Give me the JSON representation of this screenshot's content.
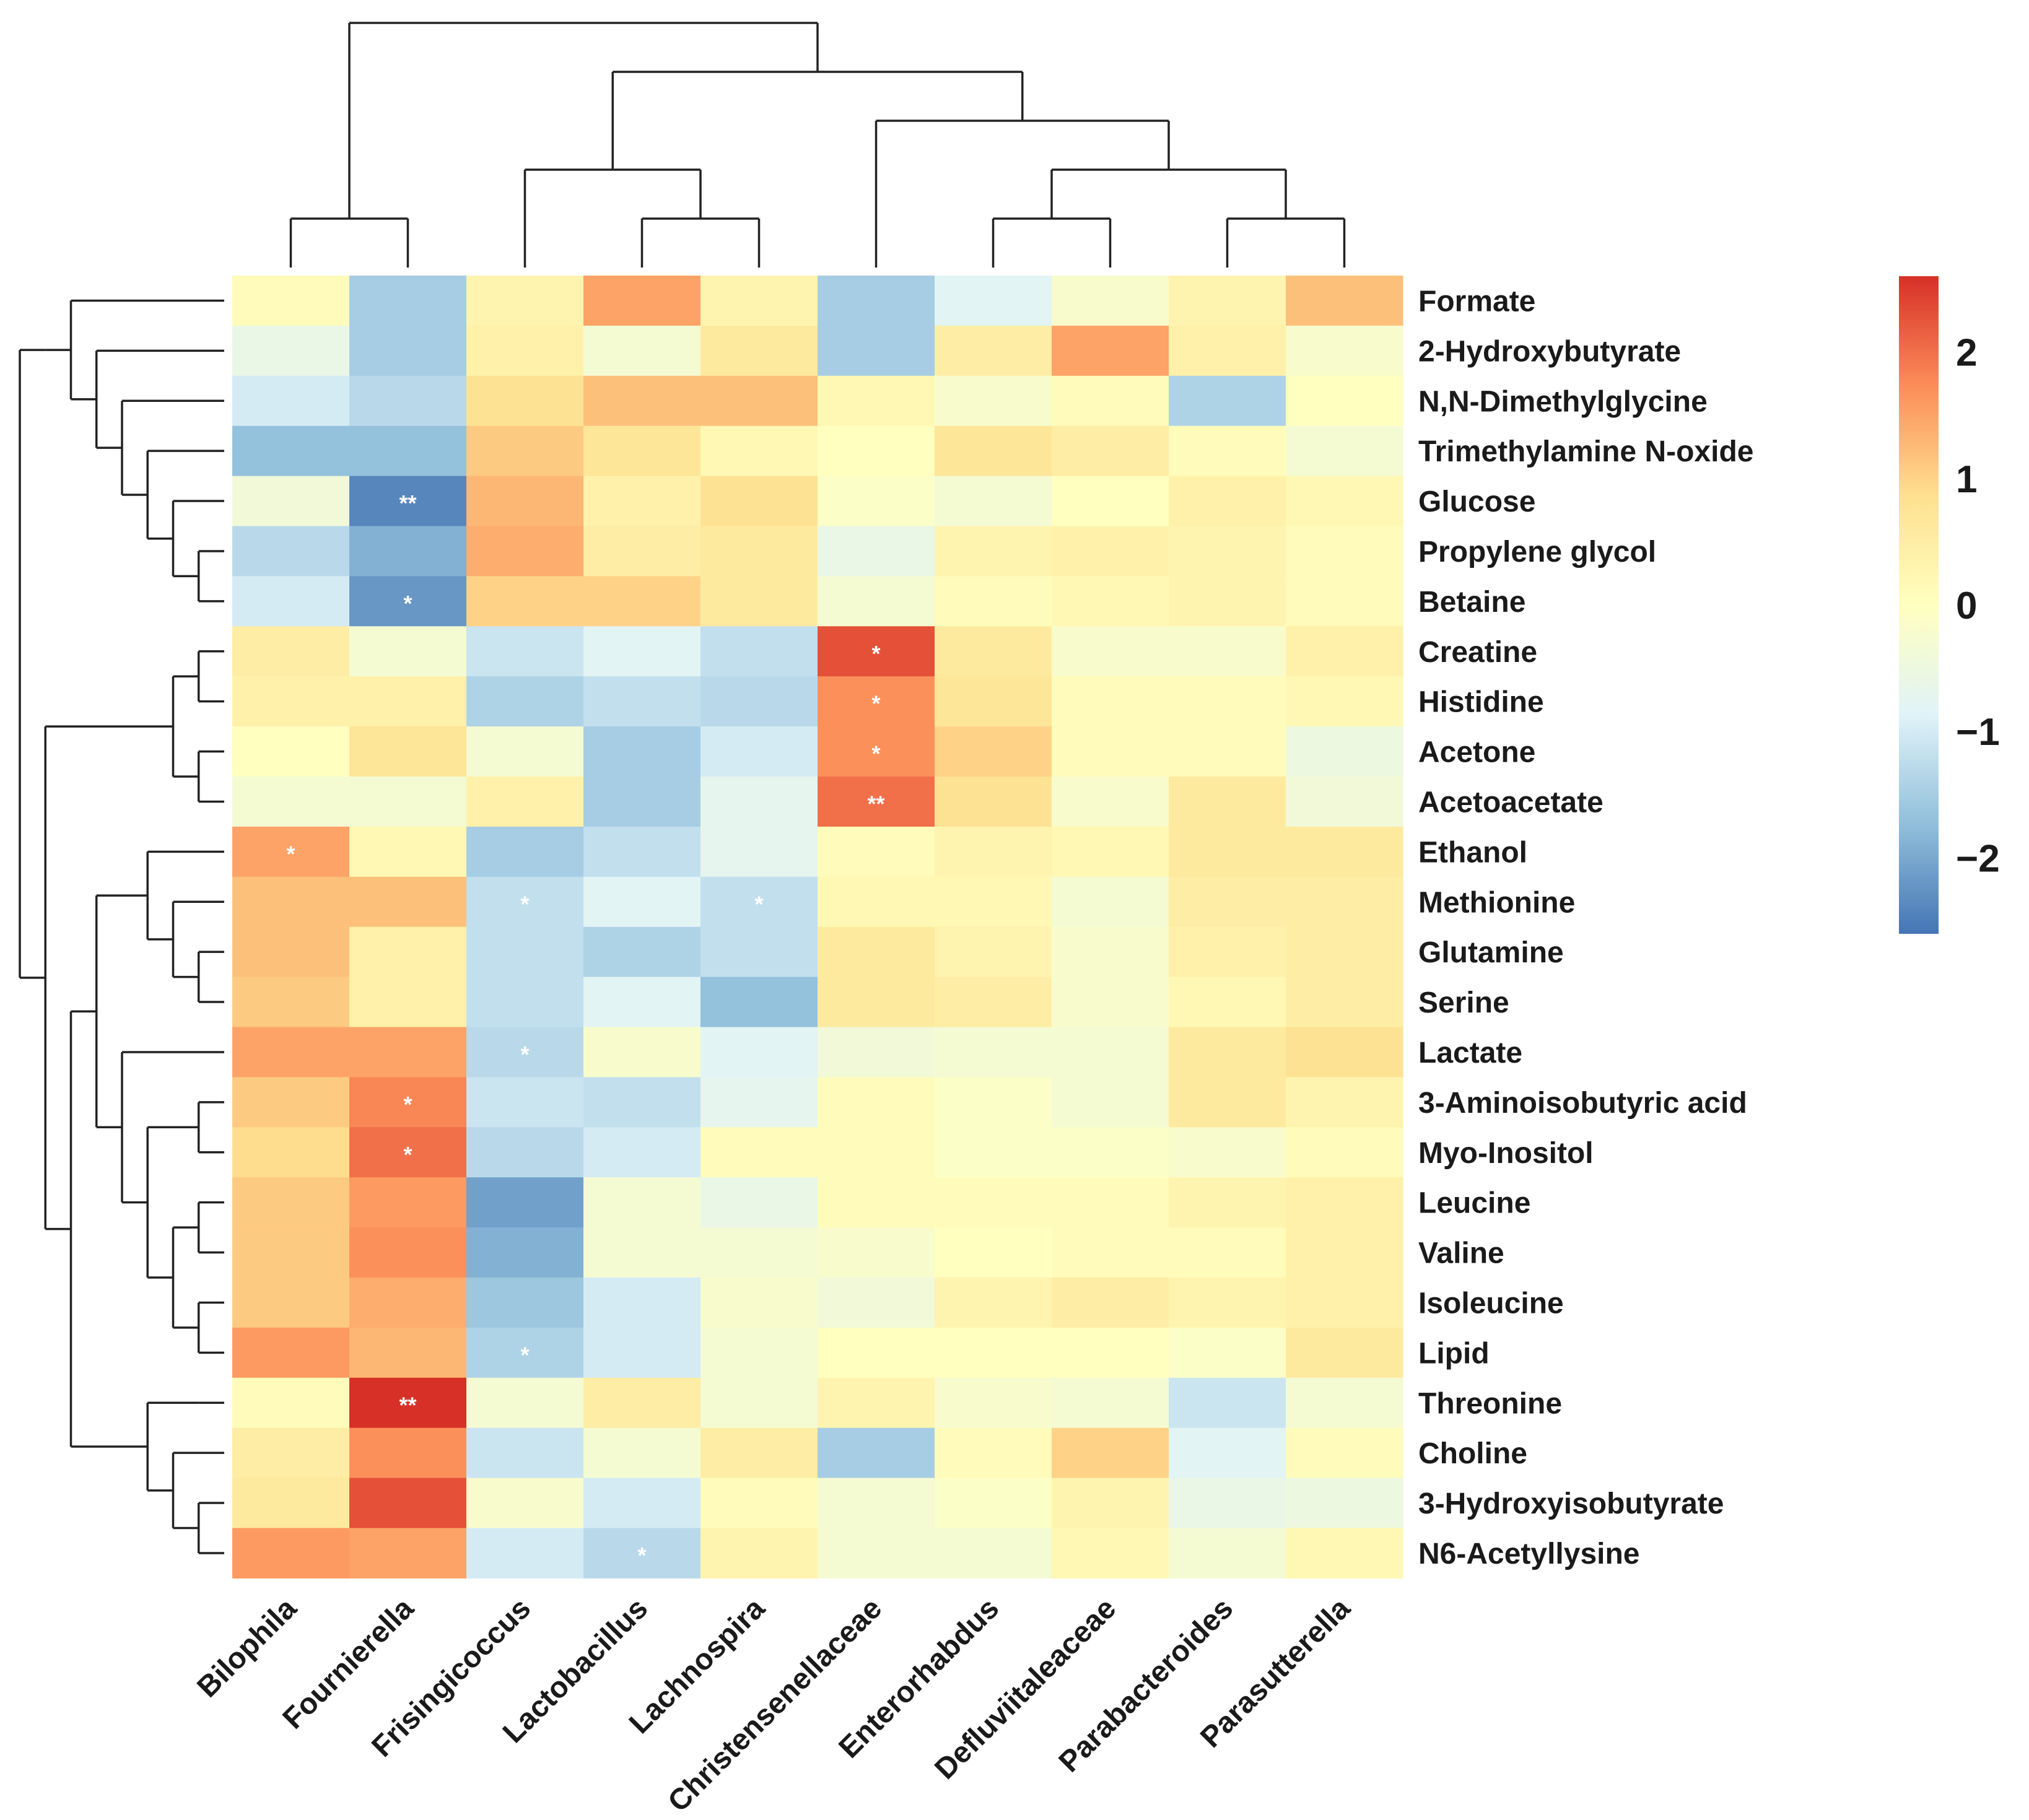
{
  "chart_data": {
    "type": "heatmap",
    "title": "",
    "rows": [
      "Formate",
      "2-Hydroxybutyrate",
      "N,N-Dimethylglycine",
      "Trimethylamine N-oxide",
      "Glucose",
      "Propylene glycol",
      "Betaine",
      "Creatine",
      "Histidine",
      "Acetone",
      "Acetoacetate",
      "Ethanol",
      "Methionine",
      "Glutamine",
      "Serine",
      "Lactate",
      "3-Aminoisobutyric acid",
      "Myo-Inositol",
      "Leucine",
      "Valine",
      "Isoleucine",
      "Lipid",
      "Threonine",
      "Choline",
      "3-Hydroxyisobutyrate",
      "N6-Acetyllysine"
    ],
    "columns": [
      "Bilophila",
      "Fournierella",
      "Frisingicoccus",
      "Lactobacillus",
      "Lachnospira",
      "Christensenellaceae",
      "Enterorhabdus",
      "Defluviitaleaceae",
      "Parabacteroides",
      "Parasutterella"
    ],
    "values": [
      [
        0.1,
        -1.5,
        0.3,
        1.5,
        0.3,
        -1.5,
        -0.8,
        -0.2,
        0.3,
        1.2
      ],
      [
        -0.6,
        -1.5,
        0.4,
        -0.3,
        0.6,
        -1.5,
        0.5,
        1.5,
        0.4,
        -0.2
      ],
      [
        -1.0,
        -1.3,
        0.8,
        1.2,
        1.2,
        0.2,
        -0.2,
        0.1,
        -1.4,
        0
      ],
      [
        -1.7,
        -1.7,
        1.1,
        0.7,
        0.2,
        0,
        0.7,
        0.5,
        0.1,
        -0.3
      ],
      [
        -0.4,
        -2.4,
        1.3,
        0.4,
        0.8,
        -0.1,
        -0.3,
        0,
        0.4,
        0.2
      ],
      [
        -1.3,
        -1.9,
        1.4,
        0.5,
        0.6,
        -0.6,
        0.3,
        0.4,
        0.3,
        0.1
      ],
      [
        -1.0,
        -2.2,
        1.0,
        1.0,
        0.6,
        -0.3,
        0.1,
        0.2,
        0.3,
        0.1
      ],
      [
        0.5,
        -0.3,
        -1.1,
        -0.8,
        -1.2,
        2.3,
        0.6,
        -0.2,
        -0.2,
        0.4
      ],
      [
        0.4,
        0.4,
        -1.4,
        -1.2,
        -1.3,
        1.7,
        0.7,
        0.1,
        0.1,
        0.2
      ],
      [
        0,
        0.7,
        -0.3,
        -1.5,
        -1.0,
        1.7,
        1.0,
        0.1,
        0.1,
        -0.5
      ],
      [
        -0.3,
        -0.3,
        0.4,
        -1.5,
        -0.7,
        2.0,
        0.8,
        -0.2,
        0.6,
        -0.4
      ],
      [
        1.5,
        0.2,
        -1.5,
        -1.2,
        -0.7,
        0.1,
        0.3,
        0.2,
        0.6,
        0.6
      ],
      [
        1.2,
        1.2,
        -1.2,
        -0.8,
        -1.2,
        0.2,
        0.2,
        -0.3,
        0.5,
        0.5
      ],
      [
        1.2,
        0.4,
        -1.2,
        -1.4,
        -1.2,
        0.6,
        0.3,
        -0.2,
        0.4,
        0.5
      ],
      [
        1.1,
        0.4,
        -1.2,
        -0.8,
        -1.7,
        0.6,
        0.5,
        -0.2,
        0.2,
        0.5
      ],
      [
        1.5,
        1.5,
        -1.3,
        -0.2,
        -0.8,
        -0.4,
        -0.3,
        -0.3,
        0.6,
        0.8
      ],
      [
        1.1,
        1.8,
        -1.1,
        -1.2,
        -0.7,
        0.1,
        -0.1,
        -0.3,
        0.6,
        0.3
      ],
      [
        0.9,
        2.0,
        -1.3,
        -1.0,
        0.1,
        0.1,
        -0.1,
        -0.1,
        -0.2,
        0.1
      ],
      [
        1.1,
        1.6,
        -2.1,
        -0.3,
        -0.6,
        0.1,
        0.1,
        0.1,
        0.3,
        0.4
      ],
      [
        1.1,
        1.7,
        -1.9,
        -0.3,
        -0.3,
        -0.2,
        0,
        0.1,
        0.1,
        0.4
      ],
      [
        1.1,
        1.4,
        -1.6,
        -1.0,
        -0.2,
        -0.4,
        0.3,
        0.5,
        0.3,
        0.4
      ],
      [
        1.6,
        1.3,
        -1.4,
        -1.0,
        -0.3,
        0,
        0,
        0,
        -0.1,
        0.6
      ],
      [
        0.1,
        2.6,
        -0.3,
        0.5,
        -0.3,
        0.3,
        -0.2,
        -0.3,
        -1.1,
        -0.3
      ],
      [
        0.5,
        1.7,
        -1.1,
        -0.3,
        0.5,
        -1.5,
        0.1,
        1.0,
        -0.8,
        0.1
      ],
      [
        0.6,
        2.3,
        -0.2,
        -1.0,
        0.1,
        -0.3,
        -0.1,
        0.3,
        -0.6,
        -0.5
      ],
      [
        1.6,
        1.5,
        -1.0,
        -1.3,
        0.3,
        -0.3,
        -0.3,
        0.2,
        -0.3,
        0.2
      ]
    ],
    "significance": [
      [
        "",
        "",
        "",
        "",
        "",
        "",
        "",
        "",
        "",
        ""
      ],
      [
        "",
        "",
        "",
        "",
        "",
        "",
        "",
        "",
        "",
        ""
      ],
      [
        "",
        "",
        "",
        "",
        "",
        "",
        "",
        "",
        "",
        ""
      ],
      [
        "",
        "",
        "",
        "",
        "",
        "",
        "",
        "",
        "",
        ""
      ],
      [
        "",
        "**",
        "",
        "",
        "",
        "",
        "",
        "",
        "",
        ""
      ],
      [
        "",
        "",
        "",
        "",
        "",
        "",
        "",
        "",
        "",
        ""
      ],
      [
        "",
        "*",
        "",
        "",
        "",
        "",
        "",
        "",
        "",
        ""
      ],
      [
        "",
        "",
        "",
        "",
        "",
        "*",
        "",
        "",
        "",
        ""
      ],
      [
        "",
        "",
        "",
        "",
        "",
        "*",
        "",
        "",
        "",
        ""
      ],
      [
        "",
        "",
        "",
        "",
        "",
        "*",
        "",
        "",
        "",
        ""
      ],
      [
        "",
        "",
        "",
        "",
        "",
        "**",
        "",
        "",
        "",
        ""
      ],
      [
        "*",
        "",
        "",
        "",
        "",
        "",
        "",
        "",
        "",
        ""
      ],
      [
        "",
        "",
        "*",
        "",
        "*",
        "",
        "",
        "",
        "",
        ""
      ],
      [
        "",
        "",
        "",
        "",
        "",
        "",
        "",
        "",
        "",
        ""
      ],
      [
        "",
        "",
        "",
        "",
        "",
        "",
        "",
        "",
        "",
        ""
      ],
      [
        "",
        "",
        "*",
        "",
        "",
        "",
        "",
        "",
        "",
        ""
      ],
      [
        "",
        "*",
        "",
        "",
        "",
        "",
        "",
        "",
        "",
        ""
      ],
      [
        "",
        "*",
        "",
        "",
        "",
        "",
        "",
        "",
        "",
        ""
      ],
      [
        "",
        "",
        "",
        "",
        "",
        "",
        "",
        "",
        "",
        ""
      ],
      [
        "",
        "",
        "",
        "",
        "",
        "",
        "",
        "",
        "",
        ""
      ],
      [
        "",
        "",
        "",
        "",
        "",
        "",
        "",
        "",
        "",
        ""
      ],
      [
        "",
        "",
        "*",
        "",
        "",
        "",
        "",
        "",
        "",
        ""
      ],
      [
        "",
        "**",
        "",
        "",
        "",
        "",
        "",
        "",
        "",
        ""
      ],
      [
        "",
        "",
        "",
        "",
        "",
        "",
        "",
        "",
        "",
        ""
      ],
      [
        "",
        "",
        "",
        "",
        "",
        "",
        "",
        "",
        "",
        ""
      ],
      [
        "",
        "",
        "",
        "*",
        "",
        "",
        "",
        "",
        "",
        ""
      ]
    ],
    "colorbar": {
      "range": [
        -2.6,
        2.6
      ],
      "ticks": [
        2,
        1,
        0,
        -1,
        -2
      ],
      "tick_labels": [
        "2",
        "1",
        "0",
        "−1",
        "−2"
      ],
      "colors": [
        "#4575b4",
        "#91bfdb",
        "#e0f3f8",
        "#ffffbf",
        "#fee090",
        "#fc8d59",
        "#d73027"
      ]
    },
    "column_tree": [
      [
        "Bilophila",
        "Fournierella"
      ],
      [
        [
          "Frisingicoccus",
          [
            "Lactobacillus",
            "Lachnospira"
          ]
        ],
        [
          "Christensenellaceae",
          [
            [
              "Enterorhabdus",
              "Defluviitaleaceae"
            ],
            [
              "Parabacteroides",
              "Parasutterella"
            ]
          ]
        ]
      ]
    ],
    "row_tree": [
      [
        [
          "Formate",
          [
            "2-Hydroxybutyrate",
            [
              "N,N-Dimethylglycine",
              [
                "Trimethylamine N-oxide",
                [
                  "Glucose",
                  [
                    "Propylene glycol",
                    "Betaine"
                  ]
                ]
              ]
            ]
          ]
        ]
      ],
      [
        [
          [
            "Creatine",
            "Histidine"
          ],
          [
            "Acetone",
            "Acetoacetate"
          ]
        ],
        [
          [
            [
              "Ethanol",
              [
                "Methionine",
                [
                  "Glutamine",
                  "Serine"
                ]
              ]
            ],
            [
              "Lactate",
              [
                [
                  "3-Aminoisobutyric acid",
                  "Myo-Inositol"
                ],
                [
                  [
                    "Leucine",
                    "Valine"
                  ],
                  [
                    "Isoleucine",
                    "Lipid"
                  ]
                ]
              ]
            ]
          ],
          [
            [
              "Threonine"
            ],
            [
              "Choline",
              [
                "3-Hydroxyisobutyrate",
                "N6-Acetyllysine"
              ]
            ]
          ]
        ]
      ]
    ]
  }
}
